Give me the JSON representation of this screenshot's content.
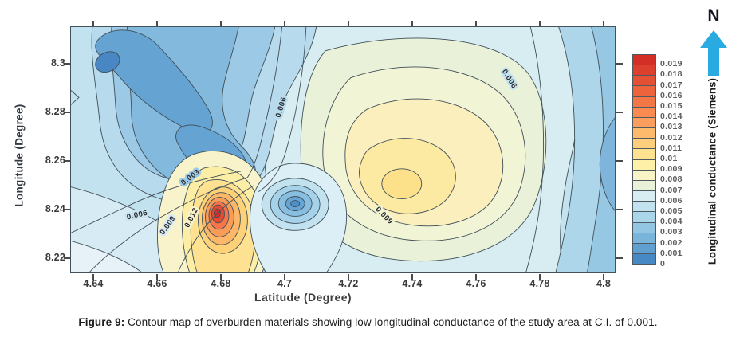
{
  "figure": {
    "caption_prefix": "Figure 9:",
    "caption_text": " Contour map of overburden materials showing low longitudinal conductance of the study area at C.I. of 0.001."
  },
  "axes": {
    "x": {
      "title": "Latitude (Degree)",
      "ticks": [
        "4.64",
        "4.66",
        "4.68",
        "4.7",
        "4.72",
        "4.74",
        "4.76",
        "4.78",
        "4.8"
      ]
    },
    "y": {
      "title": "Longitude (Degree)",
      "ticks": [
        "8.3",
        "8.28",
        "8.26",
        "8.24",
        "8.22"
      ]
    }
  },
  "colorbar": {
    "title": "Longitudinal conductance (Siemens)",
    "labels": [
      "0.019",
      "0.018",
      "0.017",
      "0.016",
      "0.015",
      "0.014",
      "0.013",
      "0.012",
      "0.011",
      "0.01",
      "0.009",
      "0.008",
      "0.007",
      "0.006",
      "0.005",
      "0.004",
      "0.003",
      "0.002",
      "0.001",
      "0"
    ],
    "colors": [
      "#d32f27",
      "#dc3f2d",
      "#e45033",
      "#ec633c",
      "#f37647",
      "#f88a52",
      "#fa9e5d",
      "#fdb96c",
      "#fdce7e",
      "#fee290",
      "#fef0a6",
      "#f8f4c5",
      "#e9f2d9",
      "#d8edf2",
      "#c3e2f0",
      "#abd6ea",
      "#92c6e2",
      "#79b4da",
      "#60a0d0",
      "#4789c4"
    ]
  },
  "north_indicator": {
    "label": "N",
    "arrow_color": "#29abe2"
  },
  "contour_labels": [
    {
      "text": "0.006"
    },
    {
      "text": "0.006"
    },
    {
      "text": "0.003"
    },
    {
      "text": "0.006"
    },
    {
      "text": "0.009"
    },
    {
      "text": "0.012"
    },
    {
      "text": "0.009"
    }
  ],
  "chart_data": {
    "type": "heatmap",
    "subtype": "filled-contour-map",
    "title": "Contour map of overburden longitudinal conductance",
    "xlabel": "Latitude (Degree)",
    "ylabel": "Longitude (Degree)",
    "zlabel": "Longitudinal conductance (Siemens)",
    "xlim": [
      4.63,
      4.805
    ],
    "ylim": [
      8.214,
      8.316
    ],
    "zlim": [
      0,
      0.02
    ],
    "contour_interval": 0.001,
    "x_ticks": [
      4.64,
      4.66,
      4.68,
      4.7,
      4.72,
      4.74,
      4.76,
      4.78,
      4.8
    ],
    "y_ticks": [
      8.22,
      8.24,
      8.26,
      8.28,
      8.3
    ],
    "colorbar_levels": [
      0,
      0.001,
      0.002,
      0.003,
      0.004,
      0.005,
      0.006,
      0.007,
      0.008,
      0.009,
      0.01,
      0.011,
      0.012,
      0.013,
      0.014,
      0.015,
      0.016,
      0.017,
      0.018,
      0.019
    ],
    "labeled_contours": [
      0.003,
      0.006,
      0.009,
      0.012
    ],
    "grid": false,
    "legend_position": "right-colorbar",
    "features": [
      {
        "name": "broad low-conductance depression (dark blue)",
        "lat": 4.665,
        "lon": 8.268,
        "value": 0.002
      },
      {
        "name": "local minimum core (dark blue)",
        "lat": 4.645,
        "lon": 8.3,
        "value": 0.001
      },
      {
        "name": "high-conductance peak (red)",
        "lat": 4.68,
        "lon": 8.241,
        "value": 0.019
      },
      {
        "name": "small local minimum (blue spot)",
        "lat": 4.703,
        "lon": 8.245,
        "value": 0.002
      },
      {
        "name": "local high (yellow)",
        "lat": 4.736,
        "lon": 8.253,
        "value": 0.012
      },
      {
        "name": "eastern low band",
        "lat": 4.8,
        "lon": 8.26,
        "value": 0.004
      }
    ]
  }
}
